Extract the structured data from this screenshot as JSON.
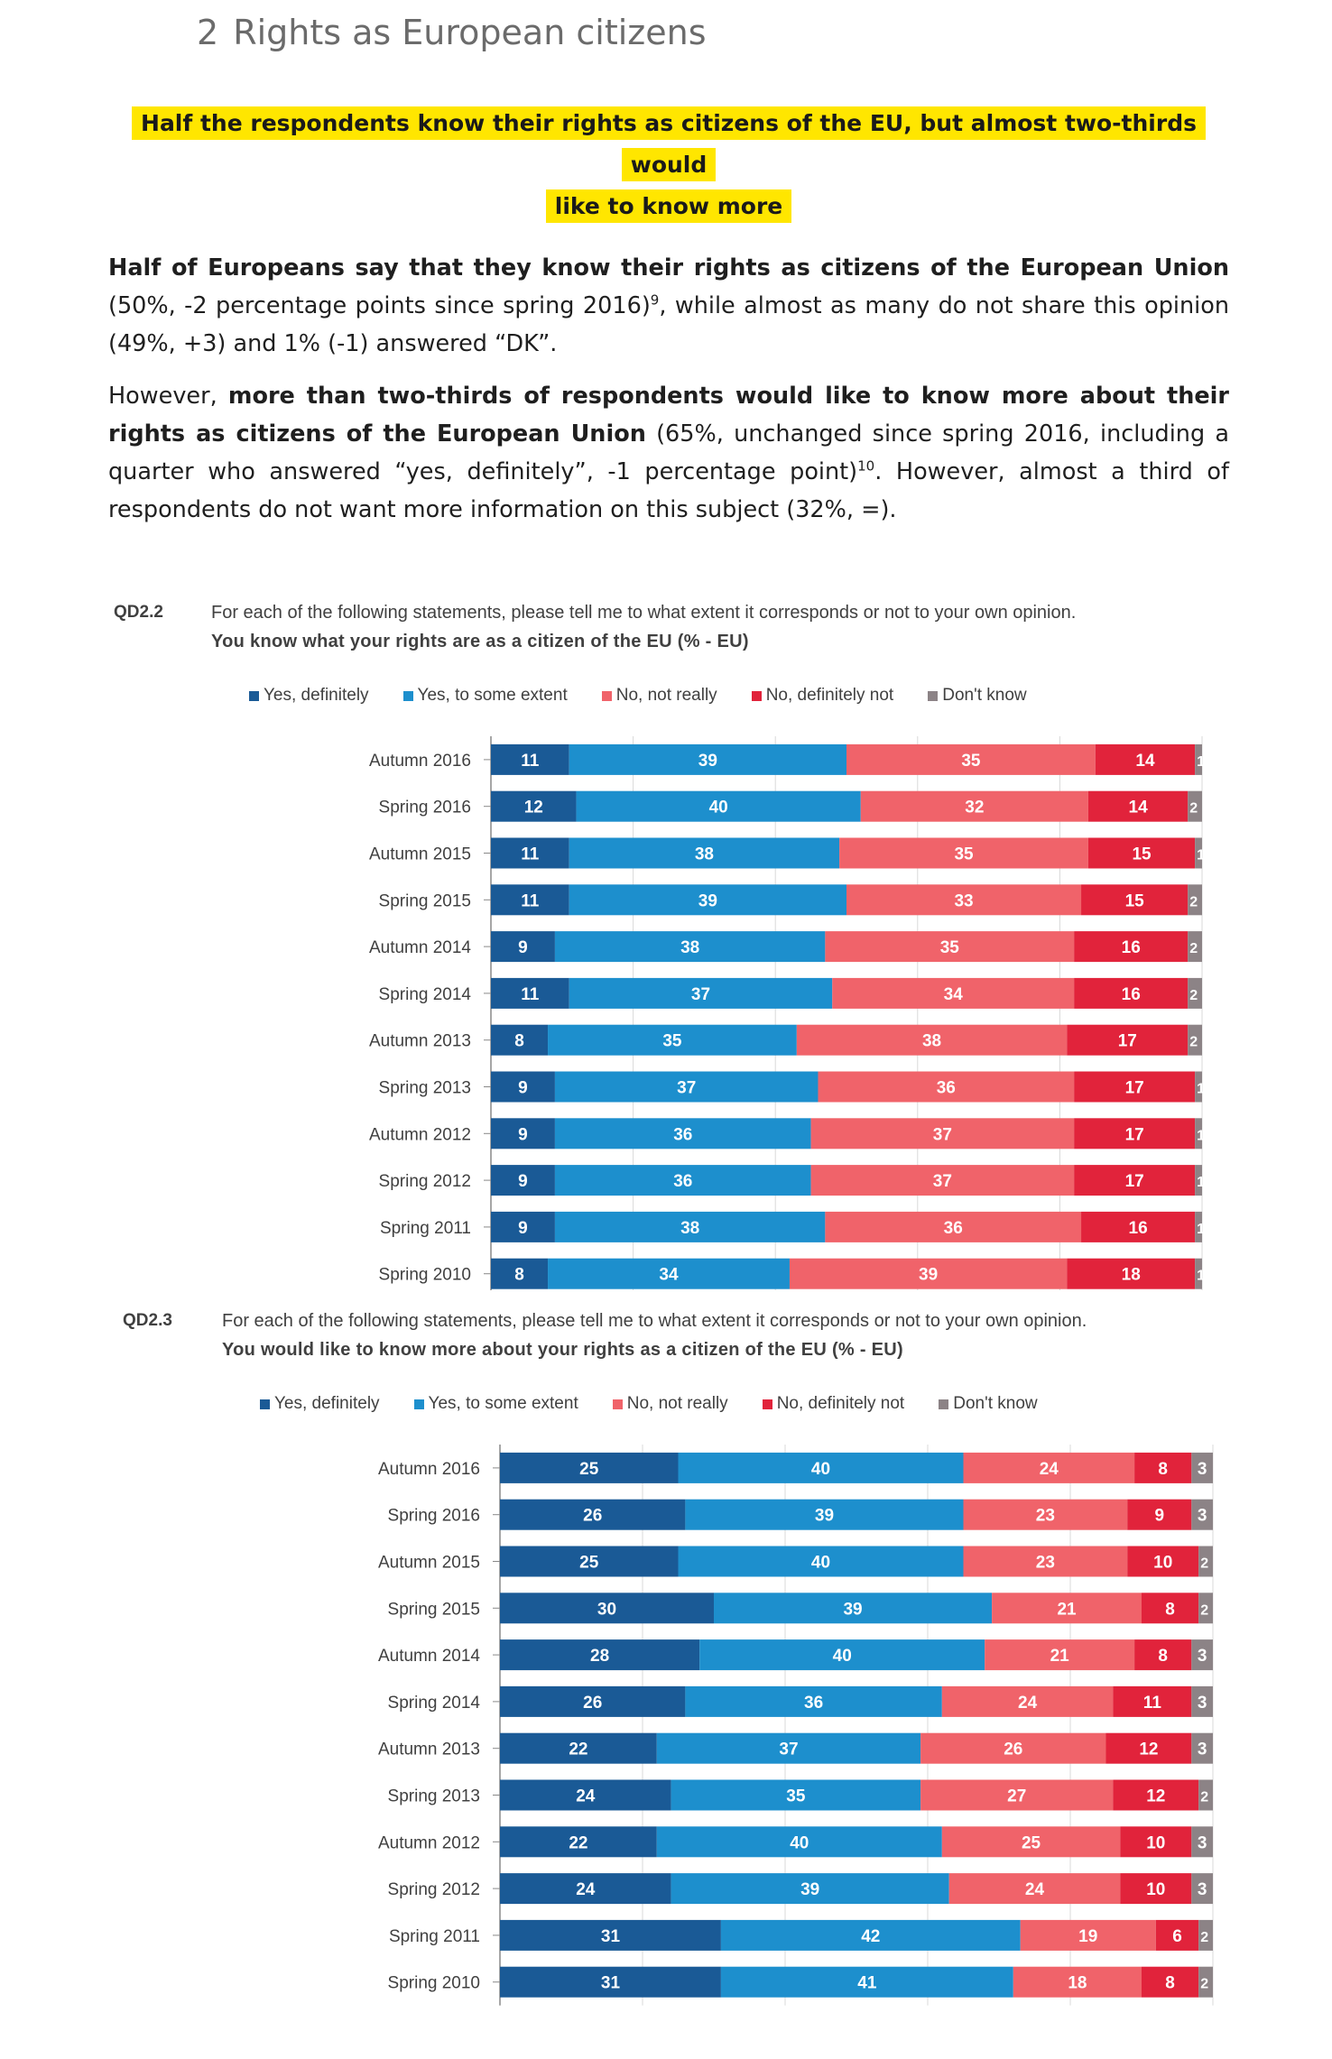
{
  "section": {
    "number": "2",
    "title": "Rights as European citizens"
  },
  "highlight": {
    "line1": "Half the respondents know their rights as citizens of the EU, but almost two-thirds would",
    "line2": "like to know more"
  },
  "paragraphs": {
    "p1_bold": "Half of Europeans say that they know their rights as citizens of the European Union",
    "p1_rest_a": " (50%, -2 percentage points since spring 2016)",
    "p1_sup": "9",
    "p1_rest_b": ", while almost as many do not share this opinion (49%, +3) and 1% (-1) answered “DK”.",
    "p2_start": "However, ",
    "p2_bold": "more than two-thirds of respondents would like to know more about their rights as citizens of the European Union",
    "p2_rest_a": " (65%, unchanged since spring 2016, including a quarter who answered “yes, definitely”, -1 percentage point)",
    "p2_sup": "10",
    "p2_rest_b": ". However, almost a third of respondents do not want more information on this subject (32%, =)."
  },
  "colors": {
    "yes_definitely": "#1a5a96",
    "yes_some": "#1d8fcd",
    "no_not_really": "#f0636a",
    "no_definitely": "#e1233b",
    "dont_know": "#8c8386"
  },
  "legend": [
    "Yes, definitely",
    "Yes, to some extent",
    "No, not really",
    "No, definitely not",
    "Don't know"
  ],
  "chart_data": [
    {
      "type": "bar",
      "orientation": "horizontal-stacked-100",
      "code": "QD2.2",
      "question": "For each of the following statements, please tell me to what extent it corresponds or not to your own opinion.",
      "title": "You know what your rights are as a citizen of the EU (% - EU)",
      "categories": [
        "Autumn 2016",
        "Spring 2016",
        "Autumn 2015",
        "Spring 2015",
        "Autumn 2014",
        "Spring 2014",
        "Autumn 2013",
        "Spring 2013",
        "Autumn 2012",
        "Spring 2012",
        "Spring 2011",
        "Spring 2010"
      ],
      "series": [
        {
          "name": "Yes, definitely",
          "values": [
            11,
            12,
            11,
            11,
            9,
            11,
            8,
            9,
            9,
            9,
            9,
            8
          ]
        },
        {
          "name": "Yes, to some extent",
          "values": [
            39,
            40,
            38,
            39,
            38,
            37,
            35,
            37,
            36,
            36,
            38,
            34
          ]
        },
        {
          "name": "No, not really",
          "values": [
            35,
            32,
            35,
            33,
            35,
            34,
            38,
            36,
            37,
            37,
            36,
            39
          ]
        },
        {
          "name": "No, definitely not",
          "values": [
            14,
            14,
            15,
            15,
            16,
            16,
            17,
            17,
            17,
            17,
            16,
            18
          ]
        },
        {
          "name": "Don't know",
          "values": [
            1,
            2,
            1,
            2,
            2,
            2,
            2,
            1,
            1,
            1,
            1,
            1
          ]
        }
      ],
      "legend_position": "top",
      "grid": true
    },
    {
      "type": "bar",
      "orientation": "horizontal-stacked-100",
      "code": "QD2.3",
      "question": "For each of the following statements, please tell me to what extent it corresponds or not to your own opinion.",
      "title": "You would like to know more about your rights as a citizen of the EU (% - EU)",
      "categories": [
        "Autumn 2016",
        "Spring 2016",
        "Autumn 2015",
        "Spring 2015",
        "Autumn 2014",
        "Spring 2014",
        "Autumn 2013",
        "Spring 2013",
        "Autumn 2012",
        "Spring 2012",
        "Spring 2011",
        "Spring 2010"
      ],
      "series": [
        {
          "name": "Yes, definitely",
          "values": [
            25,
            26,
            25,
            30,
            28,
            26,
            22,
            24,
            22,
            24,
            31,
            31
          ]
        },
        {
          "name": "Yes, to some extent",
          "values": [
            40,
            39,
            40,
            39,
            40,
            36,
            37,
            35,
            40,
            39,
            42,
            41
          ]
        },
        {
          "name": "No, not really",
          "values": [
            24,
            23,
            23,
            21,
            21,
            24,
            26,
            27,
            25,
            24,
            19,
            18
          ]
        },
        {
          "name": "No, definitely not",
          "values": [
            8,
            9,
            10,
            8,
            8,
            11,
            12,
            12,
            10,
            10,
            6,
            8
          ]
        },
        {
          "name": "Don't know",
          "values": [
            3,
            3,
            2,
            2,
            3,
            3,
            3,
            2,
            3,
            3,
            2,
            2
          ]
        }
      ],
      "legend_position": "top",
      "grid": true
    }
  ]
}
